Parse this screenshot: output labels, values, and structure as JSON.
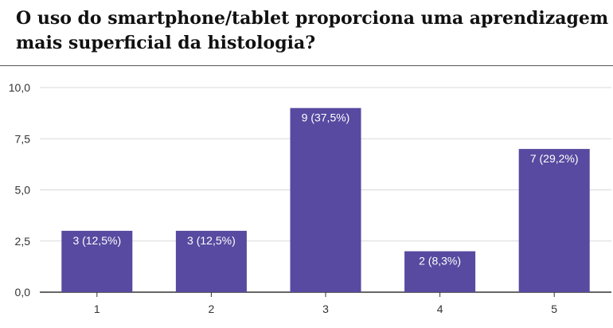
{
  "title_lines": [
    "O uso do smartphone/tablet proporciona uma aprendizagem",
    "mais superficial da histologia?"
  ],
  "chart_data": {
    "type": "bar",
    "title": "O uso do smartphone/tablet proporciona uma aprendizagem mais superficial da histologia?",
    "categories": [
      "1",
      "2",
      "3",
      "4",
      "5"
    ],
    "values": [
      3,
      3,
      9,
      2,
      7
    ],
    "data_labels": [
      "3 (12,5%)",
      "3 (12,5%)",
      "9 (37,5%)",
      "2 (8,3%)",
      "7 (29,2%)"
    ],
    "yticks": [
      "0,0",
      "2,5",
      "5,0",
      "7,5",
      "10,0"
    ],
    "ytick_values": [
      0,
      2.5,
      5,
      7.5,
      10
    ],
    "ylim": [
      0,
      10
    ],
    "xlabel": "",
    "ylabel": "",
    "grid": true,
    "bar_color": "#574aa0",
    "grid_color": "#d9d9d9",
    "axis_color": "#333333"
  }
}
